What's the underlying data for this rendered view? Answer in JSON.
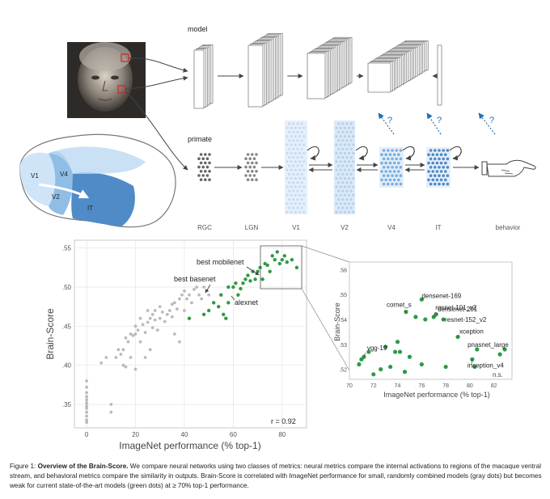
{
  "diagram": {
    "model_label": "model",
    "primate_label": "primate",
    "stage_labels": [
      "RGC",
      "LGN",
      "V1",
      "V2",
      "V4",
      "IT",
      "behavior"
    ],
    "brain_labels": [
      "V1",
      "V4",
      "V2",
      "IT"
    ],
    "question_mark": "?",
    "colors": {
      "brain_light": "#cfe4f7",
      "brain_mid": "#8fbde6",
      "brain_dark": "#4f8bc7",
      "arrow": "#1f6fb4"
    }
  },
  "chart_data": [
    {
      "type": "scatter",
      "xlabel": "ImageNet performance (% top-1)",
      "ylabel": "Brain-Score",
      "xlim": [
        -5,
        90
      ],
      "ylim": [
        0.32,
        0.56
      ],
      "x_ticks": [
        "0",
        "20",
        "40",
        "60",
        "80"
      ],
      "y_ticks": [
        ".35",
        ".40",
        ".45",
        ".50",
        ".55"
      ],
      "grid": true,
      "annotations": [
        "best mobilenet",
        "best basenet",
        "alexnet"
      ],
      "stat_label": "r = 0.92",
      "colors": {
        "gray": "#aaaaaa",
        "green": "#2e9a45"
      },
      "gray_points": [
        [
          0,
          0.38
        ],
        [
          0,
          0.372
        ],
        [
          0,
          0.365
        ],
        [
          0,
          0.36
        ],
        [
          0,
          0.356
        ],
        [
          0,
          0.352
        ],
        [
          0,
          0.348
        ],
        [
          0,
          0.345
        ],
        [
          0,
          0.34
        ],
        [
          0,
          0.335
        ],
        [
          0,
          0.33
        ],
        [
          0,
          0.327
        ],
        [
          10,
          0.35
        ],
        [
          10,
          0.34
        ],
        [
          6,
          0.403
        ],
        [
          8,
          0.41
        ],
        [
          12,
          0.41
        ],
        [
          13,
          0.42
        ],
        [
          14,
          0.414
        ],
        [
          15,
          0.4
        ],
        [
          15,
          0.42
        ],
        [
          16,
          0.398
        ],
        [
          16,
          0.435
        ],
        [
          17,
          0.43
        ],
        [
          18,
          0.41
        ],
        [
          18,
          0.44
        ],
        [
          19,
          0.438
        ],
        [
          20,
          0.44
        ],
        [
          20,
          0.45
        ],
        [
          21,
          0.445
        ],
        [
          22,
          0.46
        ],
        [
          22,
          0.43
        ],
        [
          23,
          0.452
        ],
        [
          24,
          0.442
        ],
        [
          25,
          0.455
        ],
        [
          25,
          0.47
        ],
        [
          26,
          0.46
        ],
        [
          27,
          0.448
        ],
        [
          27,
          0.465
        ],
        [
          28,
          0.458
        ],
        [
          28,
          0.47
        ],
        [
          29,
          0.445
        ],
        [
          30,
          0.46
        ],
        [
          30,
          0.475
        ],
        [
          31,
          0.468
        ],
        [
          32,
          0.456
        ],
        [
          33,
          0.465
        ],
        [
          34,
          0.47
        ],
        [
          35,
          0.478
        ],
        [
          35,
          0.462
        ],
        [
          36,
          0.48
        ],
        [
          37,
          0.472
        ],
        [
          38,
          0.485
        ],
        [
          39,
          0.49
        ],
        [
          40,
          0.495
        ],
        [
          40,
          0.47
        ],
        [
          41,
          0.485
        ],
        [
          42,
          0.49
        ],
        [
          43,
          0.48
        ],
        [
          44,
          0.497
        ],
        [
          45,
          0.5
        ],
        [
          46,
          0.49
        ],
        [
          47,
          0.485
        ],
        [
          48,
          0.5
        ],
        [
          50,
          0.49
        ],
        [
          36,
          0.44
        ],
        [
          38,
          0.43
        ],
        [
          26,
          0.42
        ],
        [
          20,
          0.395
        ],
        [
          24,
          0.41
        ]
      ],
      "green_points": [
        [
          42,
          0.46
        ],
        [
          48,
          0.465
        ],
        [
          50,
          0.47
        ],
        [
          52,
          0.48
        ],
        [
          54,
          0.475
        ],
        [
          55,
          0.49
        ],
        [
          56,
          0.465
        ],
        [
          57,
          0.46
        ],
        [
          58,
          0.5
        ],
        [
          58,
          0.48
        ],
        [
          60,
          0.5
        ],
        [
          61,
          0.505
        ],
        [
          62,
          0.49
        ],
        [
          63,
          0.498
        ],
        [
          64,
          0.505
        ],
        [
          65,
          0.51
        ],
        [
          66,
          0.515
        ],
        [
          67,
          0.508
        ],
        [
          68,
          0.52
        ],
        [
          69,
          0.51
        ],
        [
          70,
          0.52
        ],
        [
          71,
          0.525
        ],
        [
          72,
          0.51
        ],
        [
          73,
          0.53
        ],
        [
          74,
          0.528
        ],
        [
          75,
          0.52
        ],
        [
          76,
          0.54
        ],
        [
          77,
          0.535
        ],
        [
          78,
          0.545
        ],
        [
          79,
          0.53
        ],
        [
          80,
          0.535
        ],
        [
          81,
          0.54
        ],
        [
          82,
          0.532
        ],
        [
          84,
          0.535
        ],
        [
          86,
          0.525
        ]
      ]
    },
    {
      "type": "scatter",
      "xlabel": "ImageNet performance (% top-1)",
      "ylabel": "Brain-Score",
      "xlim": [
        70,
        83.5
      ],
      "ylim": [
        0.516,
        0.563
      ],
      "x_ticks": [
        "70",
        "72",
        "74",
        "76",
        "78",
        "80",
        "82"
      ],
      "y_ticks": [
        ".52",
        ".53",
        ".54",
        ".55",
        ".56"
      ],
      "grid": false,
      "stat_label": "n.s.",
      "color": "#2e9a45",
      "labeled_points": [
        {
          "label": "densenet-169",
          "x": 76.0,
          "y": 0.548
        },
        {
          "label": "cornet_s",
          "x": 74.7,
          "y": 0.543
        },
        {
          "label": "resnet-101_v2",
          "x": 77.0,
          "y": 0.541
        },
        {
          "label": "densenet-201",
          "x": 77.2,
          "y": 0.542
        },
        {
          "label": "resnet-152_v2",
          "x": 77.8,
          "y": 0.54
        },
        {
          "label": "xception",
          "x": 79.0,
          "y": 0.533
        },
        {
          "label": "pnasnet_large",
          "x": 82.9,
          "y": 0.528
        },
        {
          "label": "inception_v4",
          "x": 80.2,
          "y": 0.524
        },
        {
          "label": "vgg-19",
          "x": 71.2,
          "y": 0.525
        }
      ],
      "other_points": [
        [
          70.8,
          0.522
        ],
        [
          71.0,
          0.524
        ],
        [
          71.6,
          0.527
        ],
        [
          72.0,
          0.518
        ],
        [
          72.6,
          0.52
        ],
        [
          73.0,
          0.529
        ],
        [
          73.4,
          0.521
        ],
        [
          73.8,
          0.527
        ],
        [
          74.0,
          0.531
        ],
        [
          74.2,
          0.527
        ],
        [
          74.6,
          0.519
        ],
        [
          75.0,
          0.525
        ],
        [
          75.5,
          0.541
        ],
        [
          76.0,
          0.522
        ],
        [
          76.3,
          0.54
        ],
        [
          78.0,
          0.521
        ],
        [
          80.4,
          0.521
        ],
        [
          80.6,
          0.528
        ],
        [
          82.5,
          0.526
        ]
      ]
    }
  ],
  "caption": {
    "lead": "Figure 1: ",
    "title": "Overview of the Brain-Score.",
    "body": " We compare neural networks using two classes of metrics: neural metrics compare the internal activations to regions of the macaque ventral stream, and behavioral metrics compare the similarity in outputs.  Brain-Score is correlated with ImageNet performance for small, randomly combined models (gray dots) but becomes weak for current state-of-the-art models (green dots) at ≥ 70% top-1 performance."
  }
}
